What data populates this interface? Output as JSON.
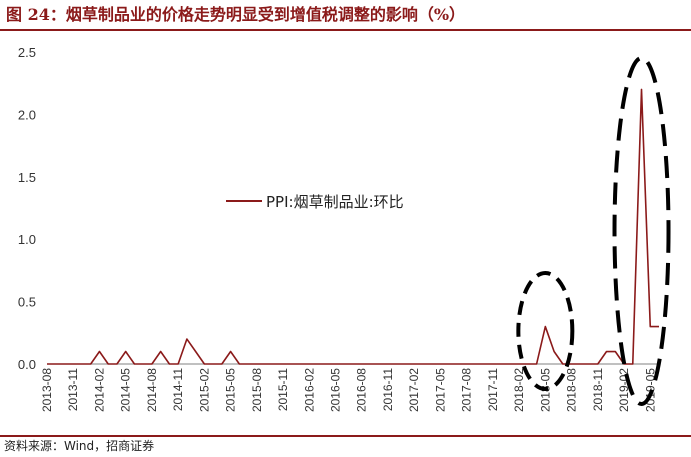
{
  "title": "图 24：烟草制品业的价格走势明显受到增值税调整的影响（%）",
  "source": "资料来源：Wind，招商证券",
  "chart_data": {
    "type": "line",
    "title": "图 24：烟草制品业的价格走势明显受到增值税调整的影响（%）",
    "xlabel": "",
    "ylabel": "",
    "ylim": [
      0,
      2.5
    ],
    "yticks": [
      "0.0",
      "0.5",
      "1.0",
      "1.5",
      "2.0",
      "2.5"
    ],
    "grid": false,
    "legend_position": "center",
    "line_color": "#8b1a1a",
    "tick_labels": [
      "2013-08",
      "2013-11",
      "2014-02",
      "2014-05",
      "2014-08",
      "2014-11",
      "2015-02",
      "2015-05",
      "2015-08",
      "2015-11",
      "2016-02",
      "2016-05",
      "2016-08",
      "2016-11",
      "2017-02",
      "2017-05",
      "2017-08",
      "2017-11",
      "2018-02",
      "2018-05",
      "2018-08",
      "2018-11",
      "2019-02",
      "2019-05"
    ],
    "x": [
      "2013-08",
      "2013-09",
      "2013-10",
      "2013-11",
      "2013-12",
      "2014-01",
      "2014-02",
      "2014-03",
      "2014-04",
      "2014-05",
      "2014-06",
      "2014-07",
      "2014-08",
      "2014-09",
      "2014-10",
      "2014-11",
      "2014-12",
      "2015-01",
      "2015-02",
      "2015-03",
      "2015-04",
      "2015-05",
      "2015-06",
      "2015-07",
      "2015-08",
      "2015-09",
      "2015-10",
      "2015-11",
      "2015-12",
      "2016-01",
      "2016-02",
      "2016-03",
      "2016-04",
      "2016-05",
      "2016-06",
      "2016-07",
      "2016-08",
      "2016-09",
      "2016-10",
      "2016-11",
      "2016-12",
      "2017-01",
      "2017-02",
      "2017-03",
      "2017-04",
      "2017-05",
      "2017-06",
      "2017-07",
      "2017-08",
      "2017-09",
      "2017-10",
      "2017-11",
      "2017-12",
      "2018-01",
      "2018-02",
      "2018-03",
      "2018-04",
      "2018-05",
      "2018-06",
      "2018-07",
      "2018-08",
      "2018-09",
      "2018-10",
      "2018-11",
      "2018-12",
      "2019-01",
      "2019-02",
      "2019-03",
      "2019-04",
      "2019-05",
      "2019-06"
    ],
    "series": [
      {
        "name": "PPI:烟草制品业:环比",
        "values": [
          0,
          0,
          0,
          0,
          0,
          0,
          0.1,
          0,
          0,
          0.1,
          0,
          0,
          0,
          0.1,
          0,
          0,
          0.2,
          0.1,
          0,
          0,
          0,
          0.1,
          0,
          0,
          0,
          0,
          0,
          0,
          0,
          0,
          0,
          0,
          0,
          0,
          0,
          0,
          0,
          0,
          0,
          0,
          0,
          0,
          0,
          0,
          0,
          0,
          0,
          0,
          0,
          0,
          0,
          0,
          0,
          0,
          0,
          0,
          0,
          0.3,
          0.1,
          0,
          0,
          0,
          0,
          0,
          0.1,
          0.1,
          0,
          0,
          2.2,
          0.3,
          0.3
        ]
      }
    ],
    "annotations": [
      {
        "shape": "dashed-ellipse",
        "around": "2018-05"
      },
      {
        "shape": "dashed-ellipse",
        "around": "2019-04"
      }
    ]
  }
}
